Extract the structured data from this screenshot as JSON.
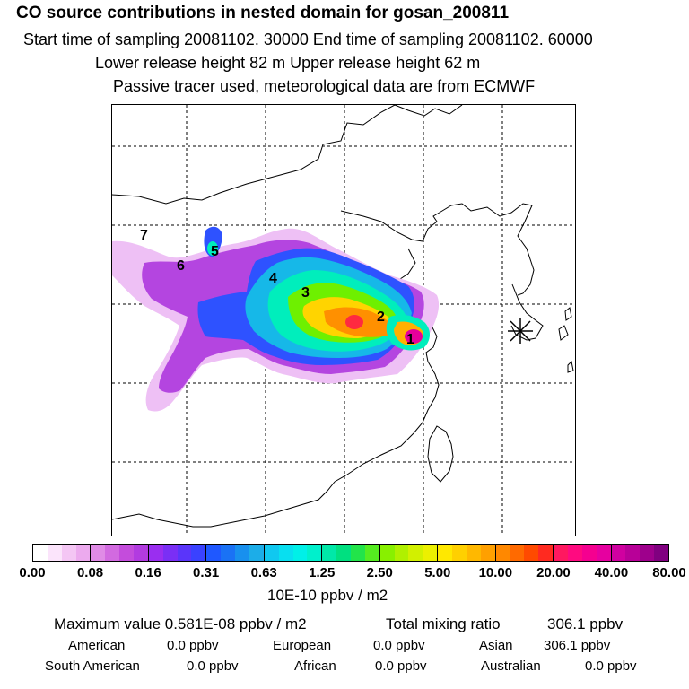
{
  "header": {
    "title": "CO  source contributions in nested domain for gosan_200811",
    "sampling": "Start time of sampling 20081102. 30000     End time of sampling 20081102. 60000",
    "release": "Lower release height   82 m          Upper release height   62 m",
    "note": "Passive tracer used, meteorological data are from ECMWF"
  },
  "map": {
    "source_regions": [
      "1",
      "2",
      "3",
      "4",
      "5",
      "6",
      "7"
    ],
    "receptor_marker": "star-marker"
  },
  "colorbar": {
    "tick_labels": [
      "0.00",
      "0.08",
      "0.16",
      "0.31",
      "0.63",
      "1.25",
      "2.50",
      "5.00",
      "10.00",
      "20.00",
      "40.00",
      "80.00"
    ],
    "colors": [
      [
        "#ffffff",
        "#fbe4fb",
        "#f4c6f4",
        "#ecaaee"
      ],
      [
        "#e08be6",
        "#d26ae0",
        "#c44cdc",
        "#b23be0"
      ],
      [
        "#9a2ef0",
        "#7a2ff5",
        "#5a35fa",
        "#3a42ff"
      ],
      [
        "#1f58ff",
        "#1a72f5",
        "#1890ee",
        "#1cade8"
      ],
      [
        "#10c8f0",
        "#08dff0",
        "#00f0e8",
        "#00f0cc"
      ],
      [
        "#00e8a8",
        "#00e080",
        "#22e44a",
        "#55ec20"
      ],
      [
        "#88f000",
        "#b0f000",
        "#d2f000",
        "#ecf000"
      ],
      [
        "#ffe800",
        "#ffd000",
        "#ffb800",
        "#ffa000"
      ],
      [
        "#ff8800",
        "#ff6a00",
        "#ff4a00",
        "#ff2a20"
      ],
      [
        "#ff1860",
        "#ff0a80",
        "#f50090",
        "#e600a0"
      ],
      [
        "#d000a0",
        "#b80098",
        "#9e008c",
        "#800080"
      ]
    ],
    "unit": "10E-10 ppbv / m2"
  },
  "summary": {
    "max_label": "Maximum value  0.581E-08 ppbv / m2",
    "total_label": "Total mixing ratio",
    "total_value": "306.1 ppbv",
    "american_label": "American",
    "american_value": "0.0 ppbv",
    "european_label": "European",
    "european_value": "0.0 ppbv",
    "asian_label": "Asian",
    "asian_value": "306.1 ppbv",
    "south_american_label": "South American",
    "south_american_value": "0.0 ppbv",
    "african_label": "African",
    "african_value": "0.0 ppbv",
    "australian_label": "Australian",
    "australian_value": "0.0 ppbv"
  }
}
